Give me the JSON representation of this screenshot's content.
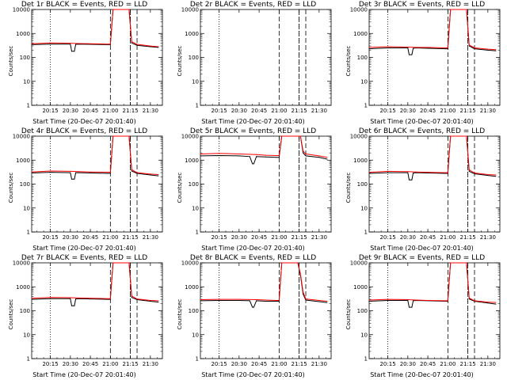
{
  "chart_data": [
    {
      "type": "line",
      "title": "Det 1r BLACK = Events, RED = LLD",
      "xlabel": "Start Time (20-Dec-07 20:01:40)",
      "ylabel": "Counts/sec",
      "xlim": [
        "20:01",
        "21:39"
      ],
      "ylim": [
        1,
        10000
      ],
      "yscale": "log",
      "xticks": [
        "20:15",
        "20:30",
        "20:45",
        "21:00",
        "21:15",
        "21:30"
      ],
      "yticks": [
        "1",
        "10",
        "100",
        "1000",
        "10000"
      ],
      "series": [
        {
          "name": "Events",
          "color": "#000000",
          "x": [
            "20:01",
            "20:15",
            "20:30",
            "20:31",
            "20:33",
            "20:34",
            "20:36",
            "20:45",
            "20:58",
            "21:00",
            "21:02",
            "21:09",
            "21:12",
            "21:14",
            "21:16",
            "21:20",
            "21:30",
            "21:36"
          ],
          "y": [
            340,
            360,
            360,
            180,
            180,
            350,
            360,
            350,
            340,
            340,
            10000,
            10000,
            10000,
            10000,
            400,
            320,
            280,
            260
          ]
        },
        {
          "name": "LLD",
          "color": "#ff0000",
          "x": [
            "20:01",
            "20:15",
            "20:30",
            "20:36",
            "20:45",
            "20:58",
            "21:00",
            "21:02",
            "21:09",
            "21:12",
            "21:14",
            "21:16",
            "21:20",
            "21:30",
            "21:36"
          ],
          "y": [
            370,
            400,
            390,
            380,
            370,
            360,
            360,
            10000,
            10000,
            10000,
            10000,
            450,
            350,
            300,
            280
          ]
        }
      ],
      "annotations": {
        "dotted_lines": [
          "20:15",
          "21:15"
        ],
        "dashed_lines": [
          "21:00",
          "21:15",
          "21:20"
        ]
      }
    },
    {
      "type": "line",
      "title": "Det 2r BLACK = Events, RED = LLD",
      "xlabel": "Start Time (20-Dec-07 20:01:40)",
      "ylabel": "Counts/sec",
      "xlim": [
        "20:01",
        "21:39"
      ],
      "ylim": [
        1,
        10000
      ],
      "yscale": "log",
      "xticks": [
        "20:15",
        "20:30",
        "20:45",
        "21:00",
        "21:15",
        "21:30"
      ],
      "yticks": [
        "1",
        "10",
        "100",
        "1000",
        "10000"
      ],
      "series": [
        {
          "name": "Events",
          "color": "#000000",
          "x": [],
          "y": []
        },
        {
          "name": "LLD",
          "color": "#ff0000",
          "x": [],
          "y": []
        }
      ],
      "annotations": {
        "dotted_lines": [
          "20:15",
          "21:15"
        ],
        "dashed_lines": [
          "21:00",
          "21:15",
          "21:20"
        ]
      }
    },
    {
      "type": "line",
      "title": "Det 3r BLACK = Events, RED = LLD",
      "xlabel": "Start Time (20-Dec-07 20:01:40)",
      "ylabel": "Counts/sec",
      "xlim": [
        "20:01",
        "21:39"
      ],
      "ylim": [
        1,
        10000
      ],
      "yscale": "log",
      "xticks": [
        "20:15",
        "20:30",
        "20:45",
        "21:00",
        "21:15",
        "21:30"
      ],
      "yticks": [
        "1",
        "10",
        "100",
        "1000",
        "10000"
      ],
      "series": [
        {
          "name": "Events",
          "color": "#000000",
          "x": [
            "20:01",
            "20:15",
            "20:30",
            "20:31",
            "20:33",
            "20:34",
            "20:36",
            "20:45",
            "20:58",
            "21:00",
            "21:02",
            "21:09",
            "21:12",
            "21:14",
            "21:16",
            "21:20",
            "21:30",
            "21:36"
          ],
          "y": [
            230,
            250,
            250,
            130,
            130,
            240,
            250,
            240,
            230,
            230,
            10000,
            10000,
            10000,
            10000,
            300,
            230,
            200,
            190
          ]
        },
        {
          "name": "LLD",
          "color": "#ff0000",
          "x": [
            "20:01",
            "20:15",
            "20:30",
            "20:36",
            "20:45",
            "20:58",
            "21:00",
            "21:02",
            "21:09",
            "21:12",
            "21:14",
            "21:16",
            "21:20",
            "21:30",
            "21:36"
          ],
          "y": [
            260,
            280,
            270,
            260,
            260,
            250,
            250,
            10000,
            10000,
            10000,
            10000,
            330,
            250,
            220,
            210
          ]
        }
      ],
      "annotations": {
        "dotted_lines": [
          "20:15",
          "21:15"
        ],
        "dashed_lines": [
          "21:00",
          "21:15",
          "21:20"
        ]
      }
    },
    {
      "type": "line",
      "title": "Det 4r BLACK = Events, RED = LLD",
      "xlabel": "Start Time (20-Dec-07 20:01:40)",
      "ylabel": "Counts/sec",
      "xlim": [
        "20:01",
        "21:39"
      ],
      "ylim": [
        1,
        10000
      ],
      "yscale": "log",
      "xticks": [
        "20:15",
        "20:30",
        "20:45",
        "21:00",
        "21:15",
        "21:30"
      ],
      "yticks": [
        "1",
        "10",
        "100",
        "1000",
        "10000"
      ],
      "series": [
        {
          "name": "Events",
          "color": "#000000",
          "x": [
            "20:01",
            "20:15",
            "20:30",
            "20:31",
            "20:33",
            "20:34",
            "20:36",
            "20:45",
            "20:58",
            "21:00",
            "21:02",
            "21:09",
            "21:12",
            "21:14",
            "21:16",
            "21:20",
            "21:30",
            "21:36"
          ],
          "y": [
            290,
            310,
            300,
            160,
            160,
            300,
            300,
            290,
            280,
            280,
            10000,
            10000,
            10000,
            10000,
            350,
            280,
            240,
            220
          ]
        },
        {
          "name": "LLD",
          "color": "#ff0000",
          "x": [
            "20:01",
            "20:15",
            "20:30",
            "20:36",
            "20:45",
            "20:58",
            "21:00",
            "21:02",
            "21:09",
            "21:12",
            "21:14",
            "21:16",
            "21:20",
            "21:30",
            "21:36"
          ],
          "y": [
            320,
            350,
            340,
            330,
            320,
            310,
            310,
            10000,
            10000,
            10000,
            10000,
            400,
            300,
            260,
            250
          ]
        }
      ],
      "annotations": {
        "dotted_lines": [
          "20:15",
          "21:15"
        ],
        "dashed_lines": [
          "21:00",
          "21:15",
          "21:20"
        ]
      }
    },
    {
      "type": "line",
      "title": "Det 5r BLACK = Events, RED = LLD",
      "xlabel": "Start Time (20-Dec-07 20:01:40)",
      "ylabel": "Counts/sec",
      "xlim": [
        "20:01",
        "21:39"
      ],
      "ylim": [
        1,
        10000
      ],
      "yscale": "log",
      "xticks": [
        "20:15",
        "20:30",
        "20:45",
        "21:00",
        "21:15",
        "21:30"
      ],
      "yticks": [
        "1",
        "10",
        "100",
        "1000",
        "10000"
      ],
      "series": [
        {
          "name": "Events",
          "color": "#000000",
          "x": [
            "20:01",
            "20:15",
            "20:30",
            "20:38",
            "20:40",
            "20:41",
            "20:43",
            "20:50",
            "20:58",
            "21:00",
            "21:02",
            "21:14",
            "21:16",
            "21:18",
            "21:20",
            "21:30",
            "21:36"
          ],
          "y": [
            1500,
            1550,
            1500,
            1400,
            700,
            700,
            1400,
            1350,
            1300,
            1300,
            10000,
            10000,
            10000,
            2000,
            1500,
            1300,
            1100
          ]
        },
        {
          "name": "LLD",
          "color": "#ff0000",
          "x": [
            "20:01",
            "20:15",
            "20:30",
            "20:43",
            "20:50",
            "20:58",
            "21:00",
            "21:02",
            "21:14",
            "21:16",
            "21:18",
            "21:20",
            "21:30",
            "21:36"
          ],
          "y": [
            1800,
            1900,
            1800,
            1700,
            1600,
            1550,
            1550,
            10000,
            10000,
            10000,
            2400,
            1800,
            1500,
            1300
          ]
        }
      ],
      "annotations": {
        "dotted_lines": [
          "20:15",
          "21:15"
        ],
        "dashed_lines": [
          "21:00",
          "21:15",
          "21:20"
        ]
      }
    },
    {
      "type": "line",
      "title": "Det 6r BLACK = Events, RED = LLD",
      "xlabel": "Start Time (20-Dec-07 20:01:40)",
      "ylabel": "Counts/sec",
      "xlim": [
        "20:01",
        "21:39"
      ],
      "ylim": [
        1,
        10000
      ],
      "yscale": "log",
      "xticks": [
        "20:15",
        "20:30",
        "20:45",
        "21:00",
        "21:15",
        "21:30"
      ],
      "yticks": [
        "1",
        "10",
        "100",
        "1000",
        "10000"
      ],
      "series": [
        {
          "name": "Events",
          "color": "#000000",
          "x": [
            "20:01",
            "20:15",
            "20:30",
            "20:31",
            "20:33",
            "20:34",
            "20:36",
            "20:45",
            "20:58",
            "21:00",
            "21:02",
            "21:09",
            "21:12",
            "21:14",
            "21:16",
            "21:20",
            "21:30",
            "21:36"
          ],
          "y": [
            280,
            300,
            300,
            150,
            150,
            290,
            300,
            290,
            280,
            280,
            10000,
            10000,
            10000,
            10000,
            340,
            270,
            230,
            210
          ]
        },
        {
          "name": "LLD",
          "color": "#ff0000",
          "x": [
            "20:01",
            "20:15",
            "20:30",
            "20:36",
            "20:45",
            "20:58",
            "21:00",
            "21:02",
            "21:09",
            "21:12",
            "21:14",
            "21:16",
            "21:20",
            "21:30",
            "21:36"
          ],
          "y": [
            310,
            340,
            330,
            320,
            310,
            300,
            300,
            10000,
            10000,
            10000,
            10000,
            390,
            290,
            250,
            240
          ]
        }
      ],
      "annotations": {
        "dotted_lines": [
          "20:15",
          "21:15"
        ],
        "dashed_lines": [
          "21:00",
          "21:15",
          "21:20"
        ]
      }
    },
    {
      "type": "line",
      "title": "Det 7r BLACK = Events, RED = LLD",
      "xlabel": "Start Time (20-Dec-07 20:01:40)",
      "ylabel": "Counts/sec",
      "xlim": [
        "20:01",
        "21:39"
      ],
      "ylim": [
        1,
        10000
      ],
      "yscale": "log",
      "xticks": [
        "20:15",
        "20:30",
        "20:45",
        "21:00",
        "21:15",
        "21:30"
      ],
      "yticks": [
        "1",
        "10",
        "100",
        "1000",
        "10000"
      ],
      "series": [
        {
          "name": "Events",
          "color": "#000000",
          "x": [
            "20:01",
            "20:15",
            "20:30",
            "20:31",
            "20:33",
            "20:34",
            "20:36",
            "20:45",
            "20:58",
            "21:00",
            "21:02",
            "21:09",
            "21:12",
            "21:14",
            "21:16",
            "21:20",
            "21:30",
            "21:36"
          ],
          "y": [
            300,
            320,
            320,
            160,
            160,
            310,
            320,
            310,
            300,
            300,
            10000,
            10000,
            10000,
            10000,
            360,
            290,
            250,
            230
          ]
        },
        {
          "name": "LLD",
          "color": "#ff0000",
          "x": [
            "20:01",
            "20:15",
            "20:30",
            "20:36",
            "20:45",
            "20:58",
            "21:00",
            "21:02",
            "21:09",
            "21:12",
            "21:14",
            "21:16",
            "21:20",
            "21:30",
            "21:36"
          ],
          "y": [
            330,
            360,
            350,
            340,
            330,
            320,
            320,
            10000,
            10000,
            10000,
            10000,
            410,
            310,
            270,
            260
          ]
        }
      ],
      "annotations": {
        "dotted_lines": [
          "20:15",
          "21:15"
        ],
        "dashed_lines": [
          "21:00",
          "21:15",
          "21:20"
        ]
      }
    },
    {
      "type": "line",
      "title": "Det 8r BLACK = Events, RED = LLD",
      "xlabel": "Start Time (20-Dec-07 20:01:40)",
      "ylabel": "Counts/sec",
      "xlim": [
        "20:01",
        "21:39"
      ],
      "ylim": [
        1,
        10000
      ],
      "yscale": "log",
      "xticks": [
        "20:15",
        "20:30",
        "20:45",
        "21:00",
        "21:15",
        "21:30"
      ],
      "yticks": [
        "1",
        "10",
        "100",
        "1000",
        "10000"
      ],
      "series": [
        {
          "name": "Events",
          "color": "#000000",
          "x": [
            "20:01",
            "20:15",
            "20:30",
            "20:38",
            "20:40",
            "20:41",
            "20:43",
            "20:50",
            "20:58",
            "21:00",
            "21:02",
            "21:12",
            "21:14",
            "21:16",
            "21:18",
            "21:20",
            "21:30",
            "21:36"
          ],
          "y": [
            260,
            270,
            270,
            260,
            140,
            140,
            260,
            250,
            250,
            250,
            10000,
            10000,
            10000,
            3000,
            500,
            280,
            240,
            220
          ]
        },
        {
          "name": "LLD",
          "color": "#ff0000",
          "x": [
            "20:01",
            "20:15",
            "20:30",
            "20:43",
            "20:50",
            "20:58",
            "21:00",
            "21:02",
            "21:12",
            "21:14",
            "21:16",
            "21:18",
            "21:20",
            "21:30",
            "21:36"
          ],
          "y": [
            290,
            300,
            300,
            290,
            280,
            270,
            270,
            10000,
            10000,
            10000,
            3500,
            600,
            310,
            270,
            250
          ]
        }
      ],
      "annotations": {
        "dotted_lines": [
          "20:15",
          "21:15"
        ],
        "dashed_lines": [
          "21:00",
          "21:15",
          "21:20"
        ]
      }
    },
    {
      "type": "line",
      "title": "Det 9r BLACK = Events, RED = LLD",
      "xlabel": "Start Time (20-Dec-07 20:01:40)",
      "ylabel": "Counts/sec",
      "xlim": [
        "20:01",
        "21:39"
      ],
      "ylim": [
        1,
        10000
      ],
      "yscale": "log",
      "xticks": [
        "20:15",
        "20:30",
        "20:45",
        "21:00",
        "21:15",
        "21:30"
      ],
      "yticks": [
        "1",
        "10",
        "100",
        "1000",
        "10000"
      ],
      "series": [
        {
          "name": "Events",
          "color": "#000000",
          "x": [
            "20:01",
            "20:15",
            "20:30",
            "20:31",
            "20:33",
            "20:34",
            "20:36",
            "20:45",
            "20:58",
            "21:00",
            "21:02",
            "21:09",
            "21:12",
            "21:14",
            "21:16",
            "21:20",
            "21:30",
            "21:36"
          ],
          "y": [
            250,
            270,
            270,
            140,
            140,
            260,
            270,
            260,
            250,
            250,
            10000,
            10000,
            10000,
            10000,
            310,
            250,
            210,
            190
          ]
        },
        {
          "name": "LLD",
          "color": "#ff0000",
          "x": [
            "20:01",
            "20:15",
            "20:30",
            "20:36",
            "20:45",
            "20:58",
            "21:00",
            "21:02",
            "21:09",
            "21:12",
            "21:14",
            "21:16",
            "21:20",
            "21:30",
            "21:36"
          ],
          "y": [
            280,
            300,
            290,
            280,
            270,
            260,
            260,
            10000,
            10000,
            10000,
            10000,
            340,
            260,
            230,
            220
          ]
        }
      ],
      "annotations": {
        "dotted_lines": [
          "20:15",
          "21:15"
        ],
        "dashed_lines": [
          "21:00",
          "21:15",
          "21:20"
        ]
      }
    }
  ]
}
